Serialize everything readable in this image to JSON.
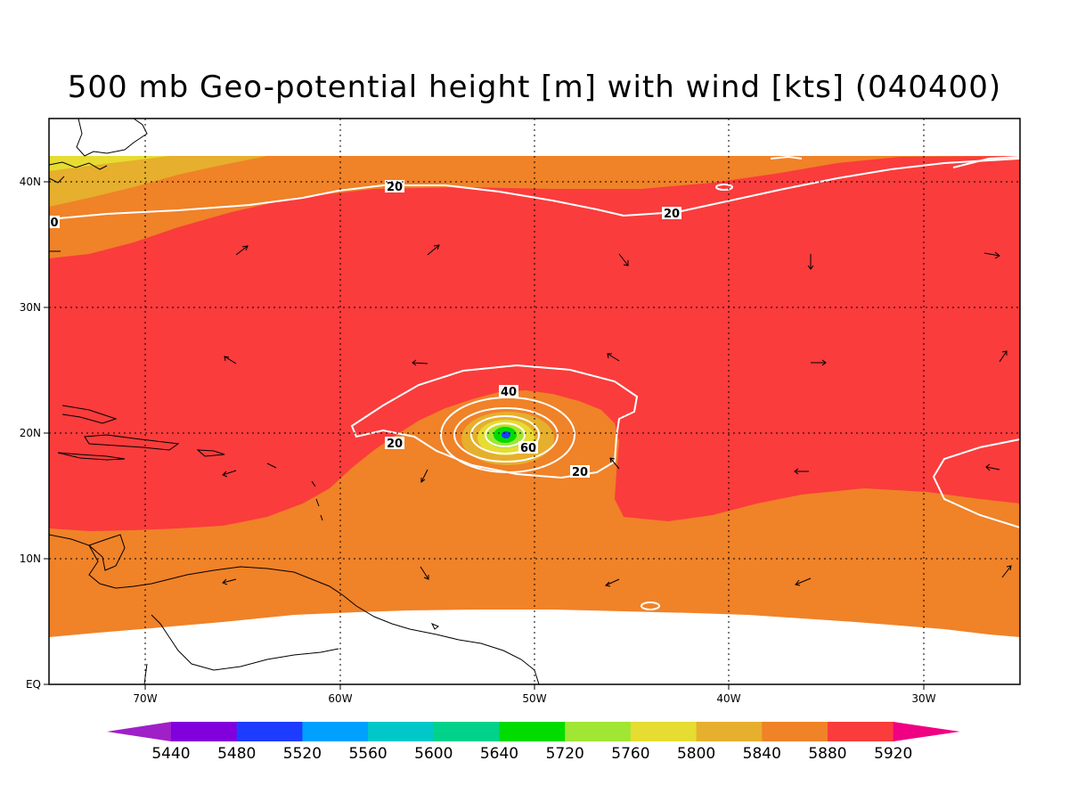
{
  "title": "500 mb Geo-potential height [m] with wind [kts] (040400)",
  "lon_ticks": [
    "70W",
    "60W",
    "50W",
    "40W",
    "30W"
  ],
  "lat_ticks": [
    "EQ",
    "10N",
    "20N",
    "30N",
    "40N"
  ],
  "colorbar": {
    "labels": [
      "5440",
      "5480",
      "5520",
      "5560",
      "5600",
      "5640",
      "5720",
      "5760",
      "5800",
      "5840",
      "5880",
      "5920"
    ],
    "colors": [
      "#a020c8",
      "#8200dc",
      "#1e3cff",
      "#00a0ff",
      "#00c8c8",
      "#00d28c",
      "#00dc00",
      "#a0e632",
      "#e6dc32",
      "#e6af2d",
      "#f08228",
      "#fa3c3c",
      "#f00082"
    ]
  },
  "contour_labels": [
    "20",
    "20",
    "0",
    "40",
    "60",
    "20",
    "20"
  ]
}
